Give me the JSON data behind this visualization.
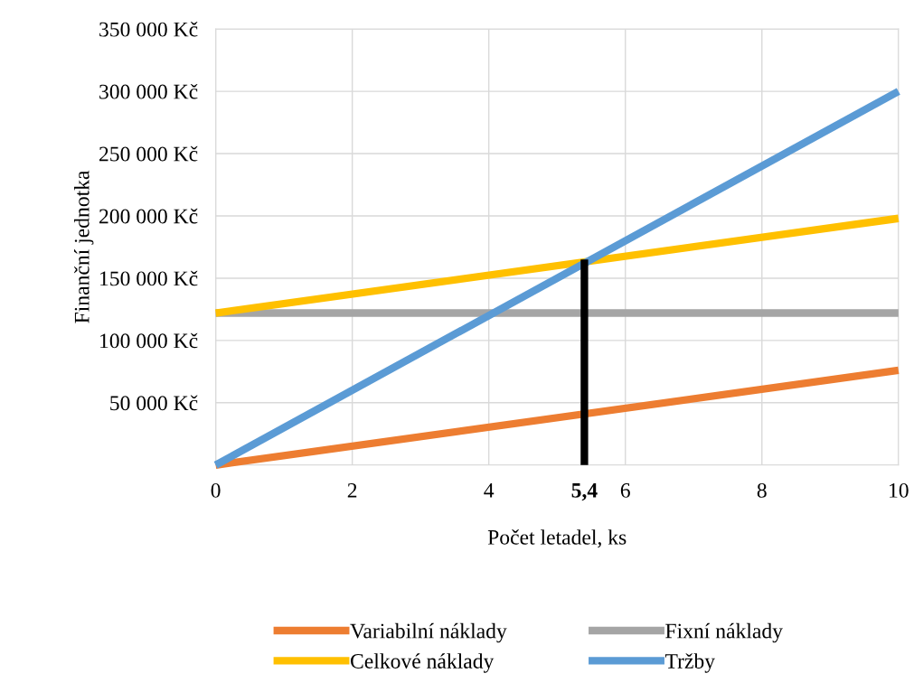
{
  "chart_data": {
    "type": "line",
    "xlabel": "Počet letadel, ks",
    "ylabel": "Finanční jednotka",
    "x": [
      0,
      10
    ],
    "series": [
      {
        "name": "Variabilní náklady",
        "color": "#ed7d31",
        "values": [
          0,
          76000
        ]
      },
      {
        "name": "Fixní náklady",
        "color": "#a5a5a5",
        "values": [
          122000,
          122000
        ]
      },
      {
        "name": "Celkové náklady",
        "color": "#ffc000",
        "values": [
          122000,
          198000
        ]
      },
      {
        "name": "Tržby",
        "color": "#5b9bd5",
        "values": [
          0,
          300000
        ]
      },
      {
        "color": "#000000",
        "x": [
          5.4,
          5.4
        ],
        "values": [
          0,
          165000
        ]
      }
    ],
    "xlim": [
      0,
      10
    ],
    "xticks": [
      0,
      2,
      4,
      {
        "value": 5.4,
        "label": "5,4"
      },
      6,
      8,
      10
    ],
    "ylim": [
      0,
      350000
    ],
    "yticks": [
      {
        "value": 0,
        "label": null
      },
      {
        "value": 50000,
        "label": "50 000 Kč"
      },
      {
        "value": 100000,
        "label": "100 000 Kč"
      },
      {
        "value": 150000,
        "label": "150 000 Kč"
      },
      {
        "value": 200000,
        "label": "200 000 Kč"
      },
      {
        "value": 250000,
        "label": "250 000 Kč"
      },
      {
        "value": 300000,
        "label": "300 000 Kč"
      },
      {
        "value": 350000,
        "label": "350 000 Kč"
      }
    ],
    "grid": true,
    "legend": "bottom",
    "marker": "none",
    "line_style": "solid"
  }
}
